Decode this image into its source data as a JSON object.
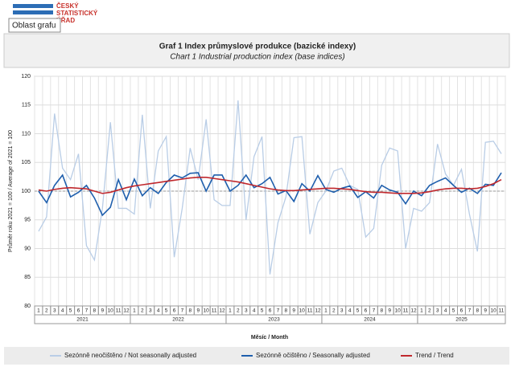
{
  "logo": [
    "ČESKÝ",
    "STATISTICKÝ",
    "ÚŘAD"
  ],
  "tooltip": "Oblast grafu",
  "chart_data": {
    "type": "line",
    "title": "Graf 1 Index průmyslové produkce (bazické indexy)",
    "subtitle": "Chart 1 Industrial production index (base indices)",
    "y_label": "Průměr roku 2021 = 100 / Average of 2021 = 100",
    "x_label": "Měsíc / Month",
    "years": [
      {
        "label": "2021",
        "months": [
          "1",
          "2",
          "3",
          "4",
          "5",
          "6",
          "7",
          "8",
          "9",
          "10",
          "11",
          "12"
        ]
      },
      {
        "label": "2022",
        "months": [
          "1",
          "2",
          "3",
          "4",
          "5",
          "6",
          "7",
          "8",
          "9",
          "10",
          "11",
          "12"
        ]
      },
      {
        "label": "2023",
        "months": [
          "1",
          "2",
          "3",
          "4",
          "5",
          "6",
          "7",
          "8",
          "9",
          "10",
          "11",
          "12"
        ]
      },
      {
        "label": "2024",
        "months": [
          "1",
          "2",
          "3",
          "4",
          "5",
          "6",
          "7",
          "8",
          "9",
          "10",
          "11",
          "12"
        ]
      },
      {
        "label": "2025",
        "months": [
          "1",
          "2",
          "3",
          "4",
          "5",
          "6",
          "7",
          "8",
          "9",
          "10",
          "11"
        ]
      }
    ],
    "ylim": [
      80,
      120
    ],
    "yticks": [
      80,
      85,
      90,
      95,
      100,
      105,
      110,
      115,
      120
    ],
    "reference_line": 100,
    "grid": true,
    "series": [
      {
        "name": "Sezónně neočištěno / Not seasonally adjusted",
        "color": "#b9cde6",
        "values": [
          93,
          95.5,
          113.5,
          104,
          102,
          106.5,
          90.5,
          88,
          97,
          112,
          97,
          97,
          96,
          113.3,
          97,
          107,
          109.5,
          88.5,
          97,
          107.5,
          102,
          112.5,
          98.5,
          97.5,
          97.5,
          115.8,
          95,
          106,
          109.5,
          85.5,
          94.5,
          99,
          109.3,
          109.5,
          92.5,
          98,
          100,
          103.5,
          104,
          101,
          100.3,
          92,
          93.5,
          104.5,
          107.5,
          107,
          90,
          97,
          96.5,
          98,
          108.2,
          103,
          101,
          103.8,
          96,
          89.5,
          108.5,
          108.7,
          106.5
        ]
      },
      {
        "name": "Sezónně očištěno / Seasonally adjusted",
        "color": "#1f5fad",
        "values": [
          100,
          98,
          101,
          102.8,
          99,
          99.8,
          101,
          98.8,
          95.8,
          97.2,
          102,
          98.5,
          102.1,
          99.2,
          100.6,
          99.6,
          101.5,
          102.8,
          102.3,
          103.1,
          103.2,
          100,
          102.8,
          102.8,
          100,
          101,
          102.8,
          100.6,
          101.3,
          102.4,
          99.5,
          100.1,
          98.2,
          101.3,
          100,
          102.7,
          100.3,
          99.8,
          100.5,
          100.9,
          98.9,
          99.9,
          98.8,
          101,
          100.2,
          99.8,
          97.8,
          100,
          99.2,
          101,
          101.7,
          102.3,
          101,
          99.8,
          100.5,
          99.6,
          101.2,
          101,
          103.2
        ]
      },
      {
        "name": "Trend / Trend",
        "color": "#c0282d",
        "values": [
          100.2,
          100,
          100.3,
          100.5,
          100.6,
          100.5,
          100.4,
          100,
          99.6,
          99.8,
          100.2,
          100.6,
          100.9,
          101.1,
          101.3,
          101.5,
          101.7,
          101.9,
          102.1,
          102.3,
          102.4,
          102.4,
          102.2,
          102,
          101.8,
          101.6,
          101.3,
          101,
          100.7,
          100.4,
          100.2,
          100.1,
          100.1,
          100.2,
          100.3,
          100.4,
          100.5,
          100.5,
          100.4,
          100.3,
          100.1,
          99.9,
          99.8,
          99.8,
          99.7,
          99.6,
          99.6,
          99.6,
          99.7,
          99.9,
          100.2,
          100.4,
          100.5,
          100.5,
          100.4,
          100.5,
          100.8,
          101.3,
          102
        ]
      }
    ]
  }
}
